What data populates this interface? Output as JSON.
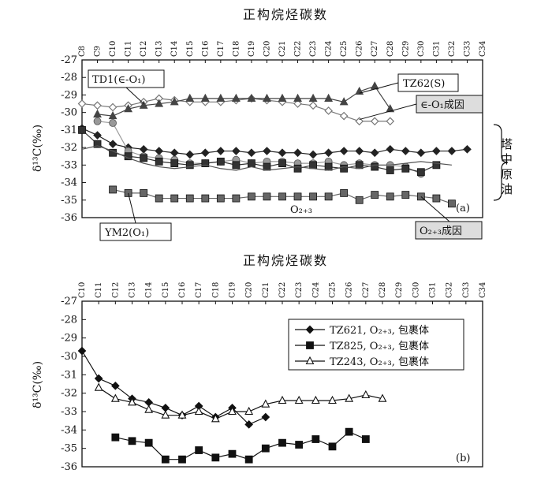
{
  "chart_data": [
    {
      "type": "line",
      "panel": "(a)",
      "title": "正构烷烃碳数",
      "ylabel": "δ¹³C(‰)",
      "categories": [
        "C8",
        "C9",
        "C10",
        "C11",
        "C12",
        "C13",
        "C14",
        "C15",
        "C16",
        "C17",
        "C18",
        "C19",
        "C20",
        "C21",
        "C22",
        "C23",
        "C24",
        "C25",
        "C26",
        "C27",
        "C28",
        "C29",
        "C30",
        "C31",
        "C32",
        "C33",
        "C34"
      ],
      "ylim": [
        -36,
        -27
      ],
      "yticks": [
        -27,
        -28,
        -29,
        -30,
        -31,
        -32,
        -33,
        -34,
        -35,
        -36
      ],
      "grid": false,
      "annotations": {
        "td1": "TD1(∈-O₁)",
        "tz62": "TZ62(S)",
        "cambrian_source": "∈-O₁成因",
        "crude_oil": "塔中原油",
        "o23": "O₂₊₃",
        "ym2": "YM2(O₁)",
        "o23_source": "O₂₊₃成因",
        "panel": "(a)"
      },
      "series": [
        {
          "marker": "diamond-open",
          "color": "#777777",
          "x": [
            8,
            9,
            10,
            11,
            12,
            13,
            14,
            15,
            16,
            17,
            18,
            19,
            20,
            21,
            22,
            23,
            24,
            25,
            26,
            27,
            28
          ],
          "values": [
            -29.5,
            -29.6,
            -29.7,
            -29.6,
            -29.4,
            -29.2,
            -29.3,
            -29.4,
            -29.4,
            -29.4,
            -29.3,
            -29.2,
            -29.3,
            -29.4,
            -29.5,
            -29.6,
            -29.9,
            -30.2,
            -30.5,
            -30.5,
            -30.5
          ]
        },
        {
          "marker": "triangle-filled",
          "color": "#444444",
          "x": [
            9,
            10,
            11,
            12,
            13,
            14,
            15,
            16,
            17,
            18,
            19,
            20,
            21,
            22,
            23,
            24,
            25,
            26,
            27,
            28
          ],
          "values": [
            -30.1,
            -30.2,
            -29.8,
            -29.6,
            -29.5,
            -29.4,
            -29.2,
            -29.2,
            -29.2,
            -29.2,
            -29.2,
            -29.2,
            -29.2,
            -29.2,
            -29.2,
            -29.2,
            -29.4,
            -28.8,
            -28.5,
            -29.8
          ]
        },
        {
          "marker": "square-filled",
          "color": "#666666",
          "x": [
            10,
            11,
            12,
            13,
            14,
            15,
            16,
            17,
            18,
            19,
            20,
            21,
            22,
            23,
            24,
            25,
            26,
            27,
            28,
            29,
            30,
            31,
            32
          ],
          "values": [
            -34.4,
            -34.6,
            -34.6,
            -34.9,
            -34.9,
            -34.9,
            -34.9,
            -34.9,
            -34.9,
            -34.8,
            -34.8,
            -34.8,
            -34.8,
            -34.8,
            -34.8,
            -34.6,
            -35.0,
            -34.7,
            -34.8,
            -34.7,
            -34.8,
            -34.9,
            -35.2
          ]
        },
        {
          "marker": "diamond-filled",
          "color": "#222222",
          "x": [
            8,
            9,
            10,
            11,
            12,
            13,
            14,
            15,
            16,
            17,
            18,
            19,
            20,
            21,
            22,
            23,
            24,
            25,
            26,
            27,
            28,
            29,
            30,
            31,
            32,
            33
          ],
          "values": [
            -30.9,
            -31.3,
            -31.8,
            -32.0,
            -32.1,
            -32.2,
            -32.3,
            -32.4,
            -32.3,
            -32.2,
            -32.2,
            -32.3,
            -32.2,
            -32.3,
            -32.3,
            -32.4,
            -32.3,
            -32.2,
            -32.2,
            -32.3,
            -32.1,
            -32.2,
            -32.3,
            -32.2,
            -32.2,
            -32.1
          ]
        },
        {
          "marker": "circle-filled",
          "color": "#999999",
          "x": [
            9,
            10,
            11,
            12,
            13,
            14,
            15,
            16,
            17,
            18,
            19,
            20,
            21,
            22,
            23,
            24,
            25,
            26,
            27,
            28,
            29,
            30
          ],
          "values": [
            -30.5,
            -30.6,
            -32.2,
            -32.5,
            -32.6,
            -32.7,
            -32.9,
            -32.9,
            -32.8,
            -32.7,
            -32.9,
            -32.8,
            -32.8,
            -32.9,
            -32.9,
            -32.8,
            -33.0,
            -32.9,
            -33.0,
            -33.0,
            -33.1,
            -33.5
          ]
        },
        {
          "marker": "square-filled",
          "color": "#333333",
          "x": [
            8,
            9,
            10,
            11,
            12,
            13,
            14,
            15,
            16,
            17,
            18,
            19,
            20,
            21,
            22,
            23,
            24,
            25,
            26,
            27,
            28,
            29,
            30,
            31
          ],
          "values": [
            -31.0,
            -31.8,
            -32.3,
            -32.5,
            -32.6,
            -32.8,
            -32.9,
            -33.0,
            -32.9,
            -32.8,
            -33.0,
            -32.9,
            -33.1,
            -32.9,
            -33.2,
            -33.0,
            -33.1,
            -33.2,
            -33.0,
            -33.1,
            -33.3,
            -33.2,
            -33.4,
            -33.0
          ]
        },
        {
          "marker": "none",
          "color": "#555555",
          "x": [
            8,
            9,
            10,
            11,
            12,
            13,
            14,
            15,
            16,
            17,
            18,
            19,
            20,
            21,
            22,
            23,
            24,
            25,
            26,
            27,
            28,
            29,
            30,
            31,
            32
          ],
          "values": [
            -32.1,
            -31.9,
            -32.2,
            -32.6,
            -32.9,
            -33.1,
            -33.2,
            -33.1,
            -33.0,
            -33.2,
            -33.3,
            -33.1,
            -33.3,
            -33.2,
            -33.1,
            -33.2,
            -33.3,
            -33.1,
            -33.2,
            -33.0,
            -33.0,
            -32.9,
            -32.8,
            -32.9,
            -33.0
          ]
        }
      ]
    },
    {
      "type": "line",
      "panel": "(b)",
      "title": "正构烷烃碳数",
      "ylabel": "δ¹³C(‰)",
      "categories": [
        "C10",
        "C11",
        "C12",
        "C13",
        "C14",
        "C15",
        "C16",
        "C17",
        "C18",
        "C19",
        "C20",
        "C21",
        "C22",
        "C23",
        "C24",
        "C25",
        "C26",
        "C27",
        "C28",
        "C29",
        "C30",
        "C31",
        "C32",
        "C33",
        "C34"
      ],
      "ylim": [
        -36,
        -27
      ],
      "yticks": [
        -27,
        -28,
        -29,
        -30,
        -31,
        -32,
        -33,
        -34,
        -35,
        -36
      ],
      "grid": false,
      "legend_position": "top-right",
      "annotations": {
        "panel": "(b)"
      },
      "series": [
        {
          "name": "TZ621, O₂₊₃, 包裹体",
          "marker": "diamond-filled",
          "color": "#111111",
          "x": [
            10,
            11,
            12,
            13,
            14,
            15,
            16,
            17,
            18,
            19,
            20,
            21
          ],
          "values": [
            -29.7,
            -31.2,
            -31.6,
            -32.3,
            -32.5,
            -32.8,
            -33.2,
            -32.7,
            -33.3,
            -32.8,
            -33.7,
            -33.3
          ]
        },
        {
          "name": "TZ825, O₂₊₃, 包裹体",
          "marker": "square-filled",
          "color": "#111111",
          "x": [
            12,
            13,
            14,
            15,
            16,
            17,
            18,
            19,
            20,
            21,
            22,
            23,
            24,
            25,
            26,
            27
          ],
          "values": [
            -34.4,
            -34.6,
            -34.7,
            -35.6,
            -35.6,
            -35.1,
            -35.5,
            -35.3,
            -35.6,
            -35.0,
            -34.7,
            -34.8,
            -34.5,
            -34.9,
            -34.1,
            -34.5
          ]
        },
        {
          "name": "TZ243, O₂₊₃, 包裹体",
          "marker": "triangle-open",
          "color": "#111111",
          "x": [
            11,
            12,
            13,
            14,
            15,
            16,
            17,
            18,
            19,
            20,
            21,
            22,
            23,
            24,
            25,
            26,
            27,
            28
          ],
          "values": [
            -31.7,
            -32.3,
            -32.5,
            -32.9,
            -33.2,
            -33.2,
            -33.0,
            -33.4,
            -33.0,
            -33.0,
            -32.6,
            -32.4,
            -32.4,
            -32.4,
            -32.4,
            -32.3,
            -32.1,
            -32.3
          ]
        }
      ]
    }
  ]
}
